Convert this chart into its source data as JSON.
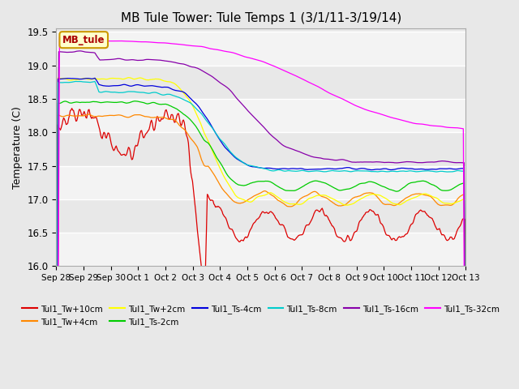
{
  "title": "MB Tule Tower: Tule Temps 1 (3/1/11-3/19/14)",
  "ylabel": "Temperature (C)",
  "ylim": [
    16.0,
    19.55
  ],
  "yticks": [
    16.0,
    16.5,
    17.0,
    17.5,
    18.0,
    18.5,
    19.0,
    19.5
  ],
  "fig_bg": "#e8e8e8",
  "plot_bg": "#e8e8e8",
  "series": [
    {
      "label": "Tul1_Tw+10cm",
      "color": "#dd0000"
    },
    {
      "label": "Tul1_Tw+4cm",
      "color": "#ff8800"
    },
    {
      "label": "Tul1_Tw+2cm",
      "color": "#ffff00"
    },
    {
      "label": "Tul1_Ts-2cm",
      "color": "#00cc00"
    },
    {
      "label": "Tul1_Ts-4cm",
      "color": "#0000dd"
    },
    {
      "label": "Tul1_Ts-8cm",
      "color": "#00cccc"
    },
    {
      "label": "Tul1_Ts-16cm",
      "color": "#8800aa"
    },
    {
      "label": "Tul1_Ts-32cm",
      "color": "#ff00ff"
    }
  ],
  "xtick_labels": [
    "Sep 28",
    "Sep 29",
    "Sep 30",
    "Oct 1",
    "Oct 2",
    "Oct 3",
    "Oct 4",
    "Oct 5",
    "Oct 6",
    "Oct 7",
    "Oct 8",
    "Oct 9",
    "Oct 10",
    "Oct 11",
    "Oct 12",
    "Oct 13"
  ],
  "n_points": 500,
  "legend_ncol": 6
}
